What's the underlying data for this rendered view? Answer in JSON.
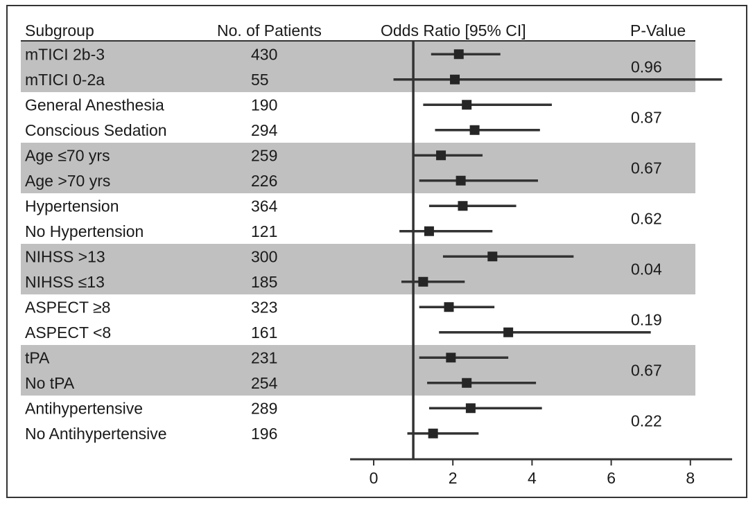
{
  "chart_data": {
    "type": "forest",
    "headers": {
      "subgroup": "Subgroup",
      "patients": "No. of Patients",
      "odds_ratio": "Odds Ratio [95% CI]",
      "p_value": "P-Value"
    },
    "reference_line": 1,
    "xlim": [
      -0.6,
      9.1
    ],
    "x_ticks": [
      0,
      2,
      4,
      6,
      8
    ],
    "groups": [
      {
        "shaded": true,
        "p_value": "0.96",
        "rows": [
          {
            "subgroup": "mTICI 2b-3",
            "patients": "430",
            "or": 2.15,
            "ci": [
              1.45,
              3.2
            ]
          },
          {
            "subgroup": "mTICI 0-2a",
            "patients": "55",
            "or": 2.05,
            "ci": [
              0.5,
              8.8
            ]
          }
        ]
      },
      {
        "shaded": false,
        "p_value": "0.87",
        "rows": [
          {
            "subgroup": "General Anesthesia",
            "patients": "190",
            "or": 2.35,
            "ci": [
              1.25,
              4.5
            ]
          },
          {
            "subgroup": "Conscious Sedation",
            "patients": "294",
            "or": 2.55,
            "ci": [
              1.55,
              4.2
            ]
          }
        ]
      },
      {
        "shaded": true,
        "p_value": "0.67",
        "rows": [
          {
            "subgroup": "Age ≤70 yrs",
            "patients": "259",
            "or": 1.7,
            "ci": [
              1.0,
              2.75
            ]
          },
          {
            "subgroup": "Age >70 yrs",
            "patients": "226",
            "or": 2.2,
            "ci": [
              1.15,
              4.15
            ]
          }
        ]
      },
      {
        "shaded": false,
        "p_value": "0.62",
        "rows": [
          {
            "subgroup": "Hypertension",
            "patients": "364",
            "or": 2.25,
            "ci": [
              1.4,
              3.6
            ]
          },
          {
            "subgroup": "No Hypertension",
            "patients": "121",
            "or": 1.4,
            "ci": [
              0.65,
              3.0
            ]
          }
        ]
      },
      {
        "shaded": true,
        "p_value": "0.04",
        "rows": [
          {
            "subgroup": "NIHSS >13",
            "patients": "300",
            "or": 3.0,
            "ci": [
              1.75,
              5.05
            ]
          },
          {
            "subgroup": "NIHSS ≤13",
            "patients": "185",
            "or": 1.25,
            "ci": [
              0.7,
              2.3
            ]
          }
        ]
      },
      {
        "shaded": false,
        "p_value": "0.19",
        "rows": [
          {
            "subgroup": "ASPECT ≥8",
            "patients": "323",
            "or": 1.9,
            "ci": [
              1.15,
              3.05
            ]
          },
          {
            "subgroup": "ASPECT <8",
            "patients": "161",
            "or": 3.4,
            "ci": [
              1.65,
              7.0
            ]
          }
        ]
      },
      {
        "shaded": true,
        "p_value": "0.67",
        "rows": [
          {
            "subgroup": "tPA",
            "patients": "231",
            "or": 1.95,
            "ci": [
              1.15,
              3.4
            ]
          },
          {
            "subgroup": "No tPA",
            "patients": "254",
            "or": 2.35,
            "ci": [
              1.35,
              4.1
            ]
          }
        ]
      },
      {
        "shaded": false,
        "p_value": "0.22",
        "rows": [
          {
            "subgroup": "Antihypertensive",
            "patients": "289",
            "or": 2.45,
            "ci": [
              1.4,
              4.25
            ]
          },
          {
            "subgroup": "No Antihypertensive",
            "patients": "196",
            "or": 1.5,
            "ci": [
              0.85,
              2.65
            ]
          }
        ]
      }
    ],
    "colors": {
      "shade": "#c0c0c0",
      "marker": "#262626",
      "line": "#333333",
      "text": "#1a1a1a"
    }
  }
}
